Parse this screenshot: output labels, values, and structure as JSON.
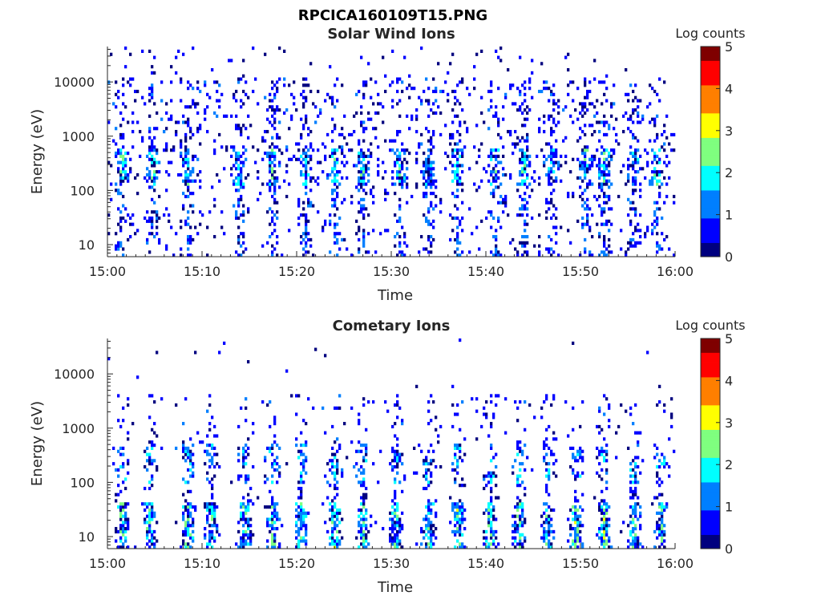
{
  "figure": {
    "title": "RPCICA160109T15.PNG"
  },
  "colormap": [
    "#00007f",
    "#0000ff",
    "#007fff",
    "#00ffff",
    "#7fff7f",
    "#ffff00",
    "#ff7f00",
    "#ff0000",
    "#7f0000"
  ],
  "chart_data": [
    {
      "type": "heatmap",
      "title": "Solar Wind Ions",
      "xlabel": "Time",
      "ylabel": "Energy (eV)",
      "x_ticks": [
        "15:00",
        "15:10",
        "15:20",
        "15:30",
        "15:40",
        "15:50",
        "16:00"
      ],
      "y_ticks": [
        "10",
        "100",
        "1000",
        "10000"
      ],
      "y_scale": "log",
      "ylim": [
        6,
        45000
      ],
      "colorbar": {
        "label": "Log counts",
        "range": [
          0,
          5
        ],
        "ticks": [
          "0",
          "1",
          "2",
          "3",
          "4",
          "5"
        ]
      },
      "grid": false,
      "activity_bursts_minutes": [
        1.5,
        4.8,
        8.5,
        14.0,
        17.5,
        21.0,
        24.0,
        27.0,
        31.0,
        34.0,
        37.0,
        41.0,
        44.0,
        47.0,
        50.5,
        52.5,
        55.7,
        58.0
      ]
    },
    {
      "type": "heatmap",
      "title": "Cometary Ions",
      "xlabel": "Time",
      "ylabel": "Energy (eV)",
      "x_ticks": [
        "15:00",
        "15:10",
        "15:20",
        "15:30",
        "15:40",
        "15:50",
        "16:00"
      ],
      "y_ticks": [
        "10",
        "100",
        "1000",
        "10000"
      ],
      "y_scale": "log",
      "ylim": [
        6,
        45000
      ],
      "colorbar": {
        "label": "Log counts",
        "range": [
          0,
          5
        ],
        "ticks": [
          "0",
          "1",
          "2",
          "3",
          "4",
          "5"
        ]
      },
      "grid": false,
      "activity_bursts_minutes": [
        1.5,
        4.5,
        8.5,
        11.0,
        14.5,
        17.5,
        20.5,
        24.0,
        27.0,
        30.5,
        34.0,
        37.0,
        40.5,
        43.5,
        46.5,
        49.5,
        52.5,
        55.7,
        58.5
      ]
    }
  ]
}
